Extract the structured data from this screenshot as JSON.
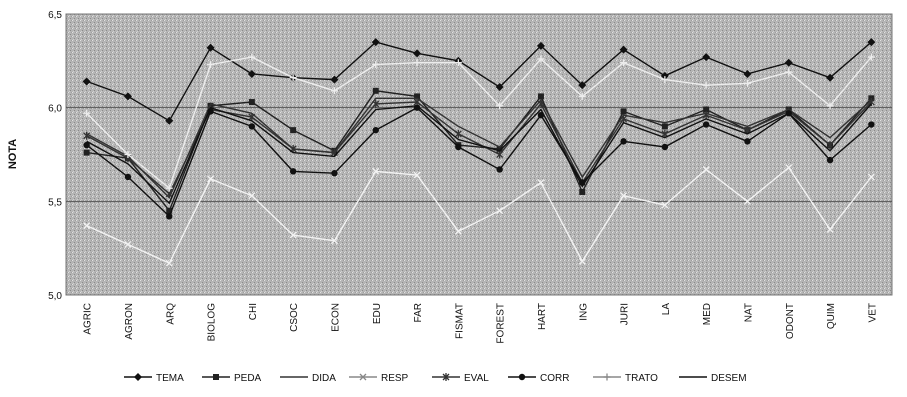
{
  "chart_data": {
    "type": "line",
    "title": "",
    "xlabel": "",
    "ylabel": "NOTA",
    "ylim": [
      5.0,
      6.5
    ],
    "yticks": [
      "5,0",
      "5,5",
      "6,0",
      "6,5"
    ],
    "ytick_values": [
      5.0,
      5.5,
      6.0,
      6.5
    ],
    "grid": "horizontal major lines",
    "legend_position": "bottom",
    "categories": [
      "AGRIC",
      "AGRON",
      "ARQ",
      "BIOLOG",
      "CHI",
      "CSOC",
      "ECON",
      "EDU",
      "FAR",
      "FISMAT",
      "FOREST",
      "HART",
      "ING",
      "JURI",
      "LA",
      "MED",
      "NAT",
      "ODONT",
      "QUIM",
      "VET"
    ],
    "series": [
      {
        "name": "TEMA",
        "color": "#111111",
        "marker": "diamond",
        "values": [
          6.14,
          6.06,
          5.93,
          6.32,
          6.18,
          6.16,
          6.15,
          6.35,
          6.29,
          6.25,
          6.11,
          6.33,
          6.12,
          6.31,
          6.17,
          6.27,
          6.18,
          6.24,
          6.16,
          6.35
        ]
      },
      {
        "name": "PEDA",
        "color": "#222222",
        "marker": "square",
        "values": [
          5.76,
          5.73,
          5.45,
          6.01,
          6.03,
          5.88,
          5.77,
          6.09,
          6.06,
          5.8,
          5.78,
          6.06,
          5.55,
          5.98,
          5.9,
          5.99,
          5.88,
          5.99,
          5.8,
          6.05
        ]
      },
      {
        "name": "DIDA",
        "color": "#333333",
        "marker": "none",
        "values": [
          5.86,
          5.74,
          5.52,
          6.02,
          5.97,
          5.78,
          5.76,
          6.05,
          6.05,
          5.9,
          5.79,
          6.04,
          5.63,
          5.96,
          5.92,
          5.97,
          5.9,
          5.99,
          5.84,
          6.04
        ]
      },
      {
        "name": "RESP",
        "color": "#f2f2f2",
        "marker": "x",
        "values": [
          5.37,
          5.27,
          5.17,
          5.62,
          5.53,
          5.32,
          5.29,
          5.66,
          5.64,
          5.34,
          5.45,
          5.6,
          5.18,
          5.53,
          5.48,
          5.67,
          5.5,
          5.68,
          5.35,
          5.63
        ]
      },
      {
        "name": "EVAL",
        "color": "#333333",
        "marker": "asterisk",
        "values": [
          5.85,
          5.73,
          5.54,
          5.99,
          5.95,
          5.78,
          5.76,
          6.02,
          6.03,
          5.86,
          5.75,
          6.02,
          5.6,
          5.94,
          5.86,
          5.96,
          5.88,
          5.98,
          5.8,
          6.03
        ]
      },
      {
        "name": "CORR",
        "color": "#111111",
        "marker": "circle",
        "values": [
          5.8,
          5.63,
          5.42,
          5.98,
          5.9,
          5.66,
          5.65,
          5.88,
          6.0,
          5.79,
          5.67,
          5.96,
          5.6,
          5.82,
          5.79,
          5.91,
          5.82,
          5.97,
          5.72,
          5.91
        ]
      },
      {
        "name": "TRATO",
        "color": "#ececec",
        "marker": "plus",
        "values": [
          5.97,
          5.75,
          5.57,
          6.23,
          6.27,
          6.16,
          6.09,
          6.23,
          6.24,
          6.24,
          6.01,
          6.26,
          6.06,
          6.24,
          6.15,
          6.12,
          6.13,
          6.19,
          6.01,
          6.27
        ]
      },
      {
        "name": "DESEM",
        "color": "#111111",
        "marker": "none",
        "values": [
          5.82,
          5.7,
          5.49,
          6.0,
          5.93,
          5.76,
          5.74,
          5.99,
          6.01,
          5.83,
          5.77,
          5.99,
          5.58,
          5.92,
          5.84,
          5.94,
          5.86,
          5.97,
          5.77,
          6.02
        ]
      }
    ]
  }
}
